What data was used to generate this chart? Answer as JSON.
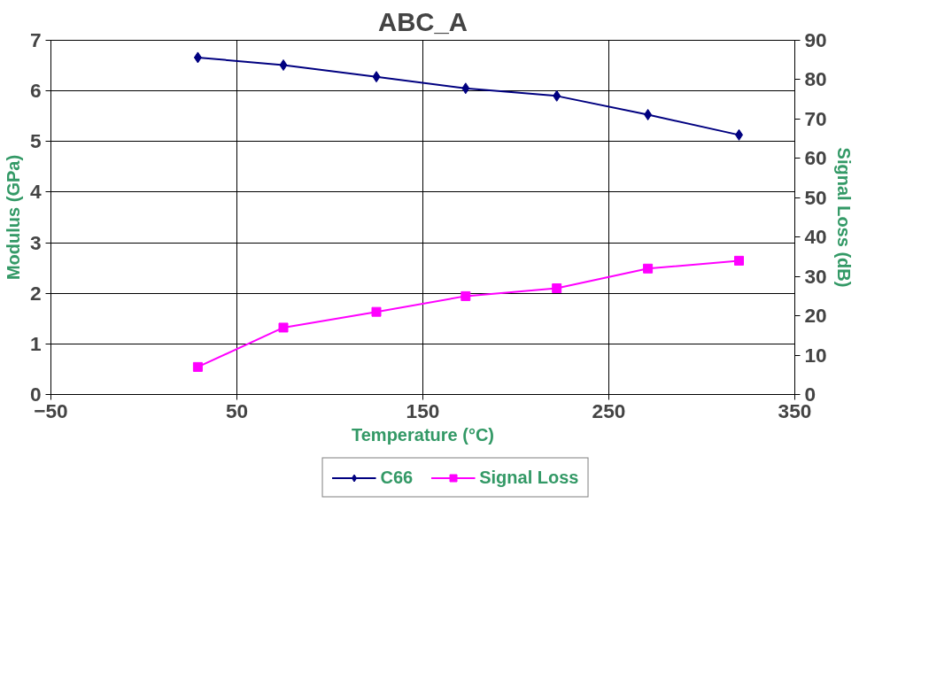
{
  "chart_data": {
    "type": "line",
    "title": "ABC_A",
    "xlabel": "Temperature (°C)",
    "ylabel": "Modulus (GPa)",
    "y2label": "Signal Loss (dB)",
    "x": [
      29,
      75,
      125,
      173,
      222,
      271,
      320
    ],
    "series": [
      {
        "name": "C66",
        "color": "#000080",
        "marker": "diamond",
        "values": [
          6.66,
          6.51,
          6.28,
          6.05,
          5.9,
          5.53,
          5.13
        ]
      },
      {
        "name": "Signal Loss",
        "color": "#ff00ff",
        "marker": "square",
        "axis": "y2",
        "values": [
          7,
          17,
          21,
          25,
          27,
          32,
          34
        ]
      }
    ],
    "xlim": [
      -50,
      350
    ],
    "xticks": [
      -50,
      50,
      150,
      250,
      350
    ],
    "ylim": [
      0,
      7
    ],
    "yticks": [
      0,
      1,
      2,
      3,
      4,
      5,
      6,
      7
    ],
    "y2lim": [
      0,
      90
    ],
    "y2ticks": [
      0,
      10,
      20,
      30,
      40,
      50,
      60,
      70,
      80,
      90
    ],
    "grid": true,
    "legend": "bottom",
    "line_style": "solid"
  }
}
